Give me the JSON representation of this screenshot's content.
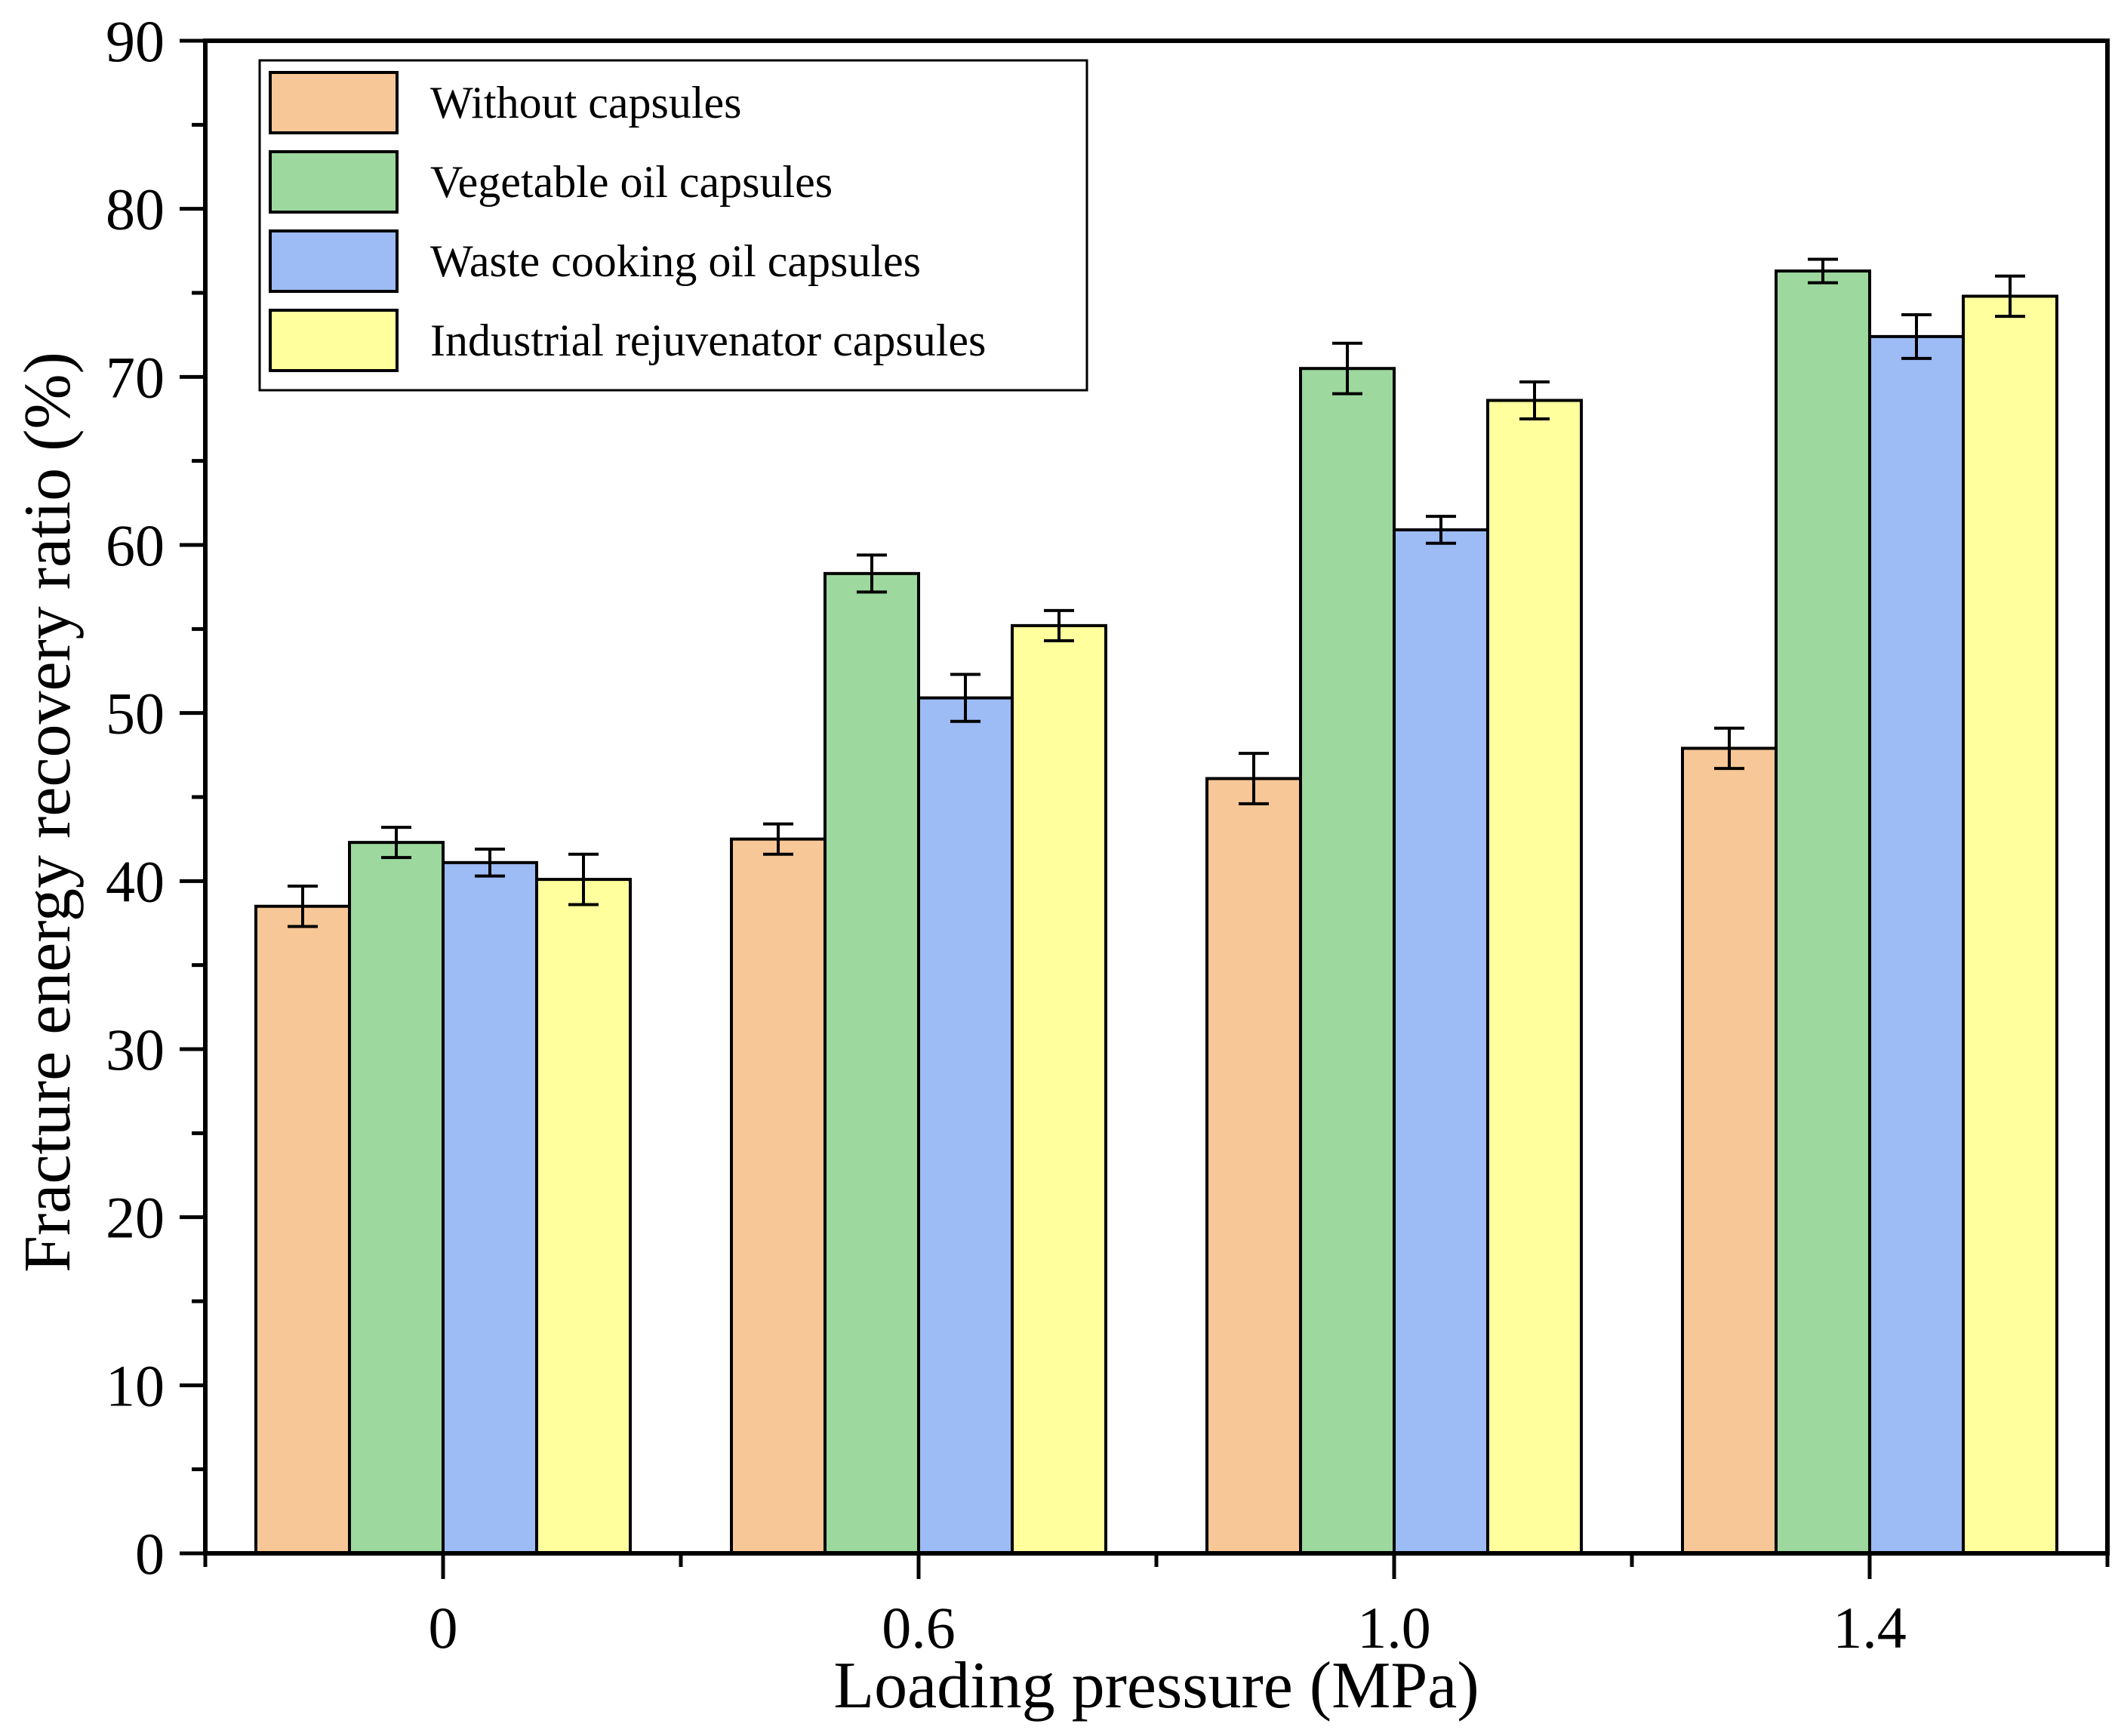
{
  "chart_data": {
    "type": "bar",
    "title": "",
    "xlabel": "Loading pressure (MPa)",
    "ylabel": "Fracture energy recovery ratio (%)",
    "ylim": [
      0,
      90
    ],
    "yticks": [
      "0",
      "10",
      "20",
      "30",
      "40",
      "50",
      "60",
      "70",
      "80",
      "90"
    ],
    "categories": [
      "0",
      "0.6",
      "1.0",
      "1.4"
    ],
    "legend_position": "top-left",
    "series": [
      {
        "name": "Without capsules",
        "color": "#F8C797",
        "values": [
          38.5,
          42.5,
          46.1,
          47.9
        ],
        "errors": [
          1.2,
          0.9,
          1.5,
          1.2
        ]
      },
      {
        "name": "Vegetable oil capsules",
        "color": "#9DD89E",
        "values": [
          42.3,
          58.3,
          70.5,
          76.3
        ],
        "errors": [
          0.9,
          1.1,
          1.5,
          0.7
        ]
      },
      {
        "name": "Waste cooking oil capsules",
        "color": "#9DBBF4",
        "values": [
          41.1,
          50.9,
          60.9,
          72.4
        ],
        "errors": [
          0.8,
          1.4,
          0.8,
          1.3
        ]
      },
      {
        "name": "Industrial rejuvenator capsules",
        "color": "#FFFF9E",
        "values": [
          40.1,
          55.2,
          68.6,
          74.8
        ],
        "errors": [
          1.5,
          0.9,
          1.1,
          1.2
        ]
      }
    ]
  }
}
